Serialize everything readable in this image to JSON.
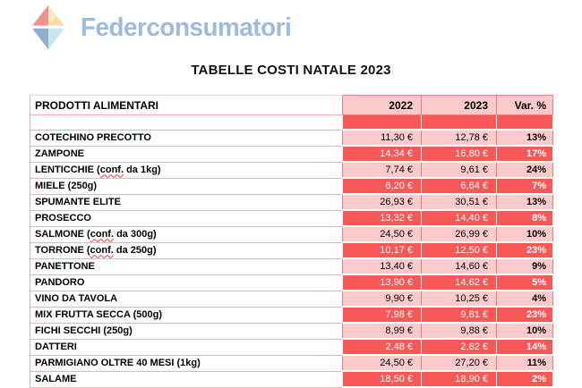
{
  "brand": {
    "name": "Federconsumatori",
    "logo_colors": {
      "red": "#F2928D",
      "peach": "#FBDBA8",
      "peach_light": "#FCE7C6",
      "blue": "#93ACD2",
      "cyan": "#C8E8F1"
    }
  },
  "title": "TABELLE COSTI NATALE 2023",
  "table": {
    "columns": [
      "PRODOTTI ALIMENTARI",
      "2022",
      "2023",
      "Var. %"
    ],
    "rows": [
      {
        "label": "COTECHINO PRECOTTO",
        "y2022": "11,30 €",
        "y2023": "12,78 €",
        "var": "13%"
      },
      {
        "label": "ZAMPONE",
        "y2022": "14,34 €",
        "y2023": "16,80 €",
        "var": "17%"
      },
      {
        "label": "LENTICCHIE (conf. da 1kg)",
        "squiggle": "conf.",
        "y2022": "7,74 €",
        "y2023": "9,61 €",
        "var": "24%"
      },
      {
        "label": "MIELE (250g)",
        "y2022": "6,20 €",
        "y2023": "6,64 €",
        "var": "7%"
      },
      {
        "label": "SPUMANTE ELITE",
        "y2022": "26,93 €",
        "y2023": "30,51 €",
        "var": "13%"
      },
      {
        "label": "PROSECCO",
        "y2022": "13,32 €",
        "y2023": "14,40 €",
        "var": "8%"
      },
      {
        "label": "SALMONE (conf. da 300g)",
        "squiggle": "conf.",
        "y2022": "24,50 €",
        "y2023": "26,99 €",
        "var": "10%"
      },
      {
        "label": "TORRONE (conf. da 250g)",
        "squiggle": "conf.",
        "y2022": "10,17 €",
        "y2023": "12,50 €",
        "var": "23%"
      },
      {
        "label": "PANETTONE",
        "y2022": "13,40 €",
        "y2023": "14,60 €",
        "var": "9%"
      },
      {
        "label": "PANDORO",
        "y2022": "13,90 €",
        "y2023": "14,62 €",
        "var": "5%"
      },
      {
        "label": "VINO DA TAVOLA",
        "y2022": "9,90 €",
        "y2023": "10,25 €",
        "var": "4%"
      },
      {
        "label": "MIX FRUTTA SECCA (500g)",
        "y2022": "7,98 €",
        "y2023": "9,81 €",
        "var": "23%"
      },
      {
        "label": "FICHI SECCHI (250g)",
        "y2022": "8,99 €",
        "y2023": "9,88 €",
        "var": "10%"
      },
      {
        "label": "DATTERI",
        "y2022": "2,48 €",
        "y2023": "2,82 €",
        "var": "14%"
      },
      {
        "label": "PARMIGIANO OLTRE 40 MESI (1kg)",
        "y2022": "24,50 €",
        "y2023": "27,20 €",
        "var": "11%"
      },
      {
        "label": "SALAME",
        "y2022": "18,50 €",
        "y2023": "18,90 €",
        "var": "2%"
      }
    ]
  },
  "colors": {
    "row_red": "#FA5757",
    "row_pink": "#FBCBCB",
    "border_red": "#F08080",
    "border_pink": "#F5AFAF",
    "text_on_red": "#FFFFFF",
    "brand_blue": "#9BBCDE",
    "squiggle_red": "#E03C3C"
  }
}
